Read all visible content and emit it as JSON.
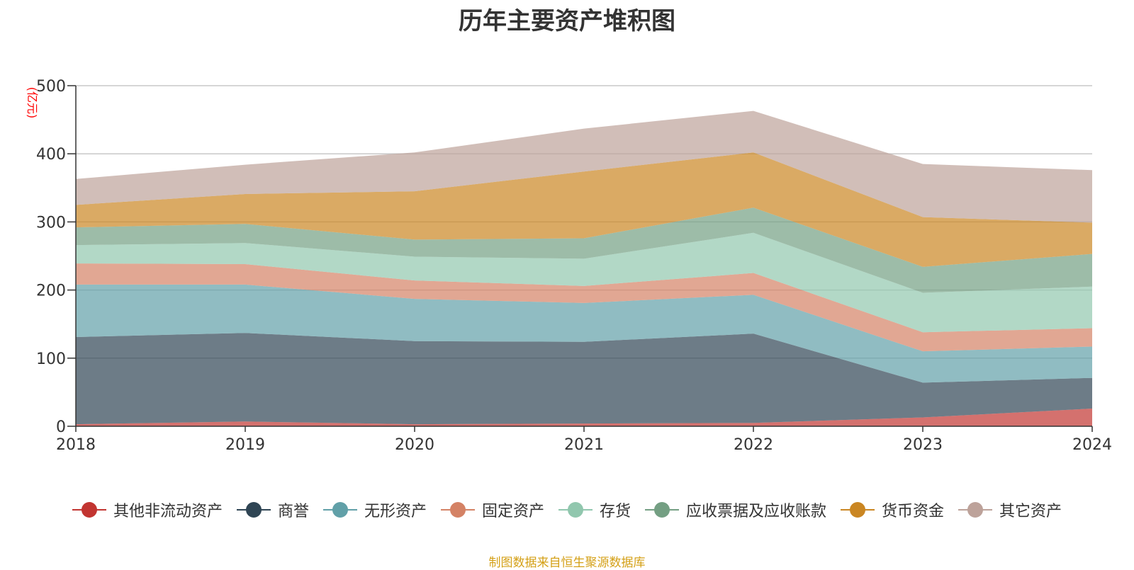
{
  "chart_data": {
    "type": "area",
    "stacked": true,
    "title": "历年主要资产堆积图",
    "unit_label": "(亿元)",
    "x": [
      "2018",
      "2019",
      "2020",
      "2021",
      "2022",
      "2023",
      "2024"
    ],
    "ylim": [
      0,
      500
    ],
    "yticks": [
      "0",
      "100",
      "200",
      "300",
      "400",
      "500"
    ],
    "grid": true,
    "legend_position": "bottom",
    "series": [
      {
        "name": "其他非流动资产",
        "color": "#c23531",
        "values": [
          3,
          7,
          3,
          4,
          5,
          13,
          26
        ]
      },
      {
        "name": "商誉",
        "color": "#2f4554",
        "values": [
          128,
          130,
          122,
          120,
          131,
          51,
          45
        ]
      },
      {
        "name": "无形资产",
        "color": "#61a0a8",
        "values": [
          77,
          71,
          62,
          57,
          57,
          46,
          46
        ]
      },
      {
        "name": "固定资产",
        "color": "#d48265",
        "values": [
          31,
          30,
          27,
          25,
          32,
          28,
          27
        ]
      },
      {
        "name": "存货",
        "color": "#91c7ae",
        "values": [
          27,
          31,
          35,
          40,
          59,
          58,
          61
        ]
      },
      {
        "name": "应收票据及应收账款",
        "color": "#749f83",
        "values": [
          26,
          28,
          25,
          30,
          37,
          38,
          48
        ]
      },
      {
        "name": "货币资金",
        "color": "#ca8622",
        "values": [
          33,
          44,
          71,
          98,
          81,
          73,
          46
        ]
      },
      {
        "name": "其它资产",
        "color": "#bda29a",
        "values": [
          38,
          43,
          57,
          63,
          61,
          78,
          77
        ]
      }
    ],
    "source_note": "制图数据来自恒生聚源数据库"
  }
}
